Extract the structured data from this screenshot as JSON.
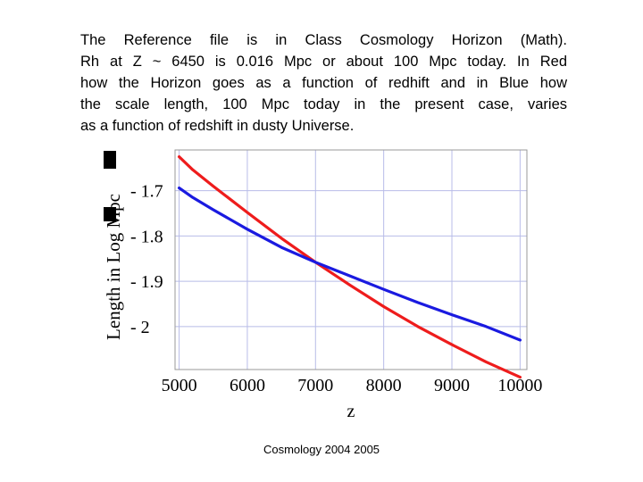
{
  "caption": {
    "lines": [
      "The Reference file is in Class Cosmology Horizon (Math).",
      "Rh at Z ~ 6450 is 0.016 Mpc or about 100 Mpc today.  In Red",
      "how the Horizon goes as a function of redhift and in Blue how",
      "the scale length, 100 Mpc today in the present case, varies",
      "as a function of redshift in  dusty Universe."
    ]
  },
  "footer": {
    "text": "Cosmology 2004 2005"
  },
  "chart_data": {
    "type": "line",
    "xlabel": "z",
    "ylabel": "Length in Log Mpc",
    "xlim": [
      4940,
      10100
    ],
    "ylim": [
      -2.095,
      -1.61
    ],
    "xticks": [
      5000,
      6000,
      7000,
      8000,
      9000,
      10000
    ],
    "xtick_labels": [
      "5000",
      "6000",
      "7000",
      "8000",
      "9000",
      "10000"
    ],
    "yticks": [
      -1.7,
      -1.8,
      -1.9,
      -2.0
    ],
    "ytick_labels": [
      "- 1.7",
      "- 1.8",
      "- 1.9",
      "- 2"
    ],
    "grid": true,
    "legend": false,
    "series": [
      {
        "color": "#ee1c1c",
        "x": [
          5000,
          5200,
          5500,
          6000,
          6500,
          7000,
          7500,
          8000,
          8500,
          9000,
          9500,
          10000
        ],
        "y": [
          -1.625,
          -1.654,
          -1.69,
          -1.748,
          -1.805,
          -1.858,
          -1.908,
          -1.956,
          -2.0,
          -2.04,
          -2.078,
          -2.112
        ]
      },
      {
        "color": "#1a1ae0",
        "x": [
          5000,
          5200,
          5500,
          6000,
          6500,
          7000,
          7500,
          8000,
          8500,
          9000,
          9500,
          10000
        ],
        "y": [
          -1.694,
          -1.715,
          -1.742,
          -1.785,
          -1.825,
          -1.858,
          -1.888,
          -1.918,
          -1.947,
          -1.974,
          -2.0,
          -2.03
        ]
      }
    ]
  }
}
